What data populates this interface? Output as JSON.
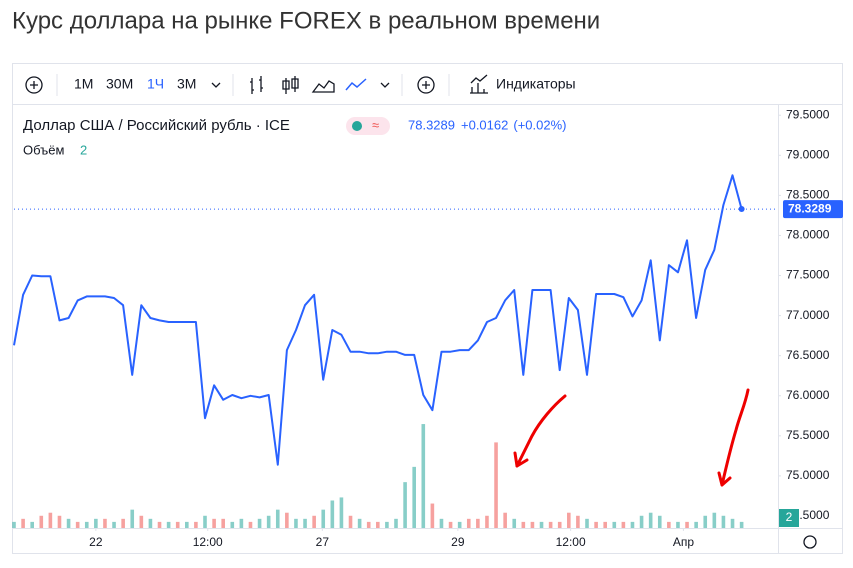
{
  "page_title": "Курс доллара на рынке FOREX в реальном времени",
  "toolbar": {
    "intervals": [
      "1M",
      "30M",
      "1Ч",
      "3M"
    ],
    "active_interval": 2,
    "indicators": "Индикаторы"
  },
  "chart_data": {
    "type": "line",
    "title": "Доллар США / Российский рубль · ICE",
    "last_price": 78.3289,
    "change": "+0.0162",
    "change_pct": "(+0.02%)",
    "volume_label": "Объём",
    "volume_last": 2,
    "x": [
      0,
      1,
      2,
      3,
      4,
      5,
      6,
      7,
      8,
      9,
      10,
      11,
      12,
      13,
      14,
      15,
      16,
      17,
      18,
      19,
      20,
      21,
      22,
      23,
      24,
      25,
      26,
      27,
      28,
      29,
      30,
      31,
      32,
      33,
      34,
      35,
      36,
      37,
      38,
      39,
      40,
      41,
      42,
      43,
      44,
      45,
      46,
      47,
      48,
      49,
      50,
      51,
      52,
      53,
      54,
      55,
      56,
      57,
      58,
      59,
      60,
      61,
      62,
      63,
      64,
      65,
      66,
      67,
      68,
      69,
      70,
      71,
      72,
      73,
      74,
      75,
      76,
      77,
      78,
      79,
      80
    ],
    "xlim": [
      0,
      84
    ],
    "xticks": [
      {
        "value": 9,
        "label": "22"
      },
      {
        "value": 21.3,
        "label": "12:00"
      },
      {
        "value": 33.9,
        "label": "27"
      },
      {
        "value": 48.8,
        "label": "29"
      },
      {
        "value": 61.2,
        "label": "12:00"
      },
      {
        "value": 73.6,
        "label": "Апр"
      }
    ],
    "ylim": [
      74.35,
      79.69
    ],
    "yticks": [
      {
        "value": 74.5,
        "label": "74.5000"
      },
      {
        "value": 75,
        "label": "75.0000"
      },
      {
        "value": 75.5,
        "label": "75.5000"
      },
      {
        "value": 76,
        "label": "76.0000"
      },
      {
        "value": 76.5,
        "label": "76.5000"
      },
      {
        "value": 77,
        "label": "77.0000"
      },
      {
        "value": 77.5,
        "label": "77.5000"
      },
      {
        "value": 78,
        "label": "78.0000"
      },
      {
        "value": 78.5,
        "label": "78.5000"
      },
      {
        "value": 79,
        "label": "79.0000"
      },
      {
        "value": 79.5,
        "label": "79.5000"
      }
    ],
    "y2lim": [
      0,
      140
    ],
    "grid": false,
    "series": [
      {
        "name": "USD/RUB",
        "color": "#2962ff",
        "values": [
          76.63,
          77.26,
          77.5,
          77.49,
          77.49,
          76.94,
          76.97,
          77.19,
          77.24,
          77.24,
          77.24,
          77.22,
          77.13,
          76.26,
          77.13,
          76.97,
          76.94,
          76.92,
          76.92,
          76.92,
          76.92,
          75.72,
          76.13,
          75.95,
          76.01,
          75.97,
          76.0,
          75.98,
          76.01,
          75.14,
          76.57,
          76.82,
          77.13,
          77.26,
          76.2,
          76.82,
          76.76,
          76.55,
          76.55,
          76.53,
          76.53,
          76.55,
          76.55,
          76.51,
          76.51,
          76.01,
          75.82,
          76.55,
          76.55,
          76.57,
          76.57,
          76.69,
          76.92,
          76.97,
          77.19,
          77.32,
          76.26,
          77.32,
          77.32,
          77.32,
          76.32,
          77.22,
          77.07,
          76.26,
          77.27,
          77.27,
          77.27,
          77.23,
          76.99,
          77.19,
          77.69,
          76.69,
          77.63,
          77.54,
          77.94,
          76.97,
          77.57,
          77.82,
          78.38,
          78.75,
          78.33
        ]
      },
      {
        "name": "Объём",
        "type": "bar",
        "axis": "y2",
        "values": [
          2,
          3,
          2,
          4,
          5,
          4,
          3,
          2,
          2,
          3,
          3,
          2,
          3,
          6,
          4,
          3,
          2,
          2,
          2,
          2,
          2,
          4,
          3,
          3,
          2,
          3,
          2,
          3,
          4,
          6,
          5,
          3,
          3,
          4,
          6,
          9,
          10,
          4,
          3,
          2,
          2,
          2,
          3,
          15,
          20,
          34,
          8,
          3,
          2,
          2,
          3,
          3,
          4,
          28,
          5,
          3,
          2,
          2,
          2,
          2,
          2,
          5,
          4,
          3,
          2,
          2,
          2,
          2,
          2,
          4,
          5,
          4,
          2,
          2,
          2,
          2,
          4,
          5,
          4,
          3,
          2
        ],
        "colors": [
          "#26a69a",
          "#ef5350",
          "#26a69a",
          "#ef5350",
          "#ef5350",
          "#ef5350",
          "#26a69a",
          "#ef5350",
          "#26a69a",
          "#26a69a",
          "#ef5350",
          "#26a69a",
          "#ef5350",
          "#26a69a",
          "#ef5350",
          "#26a69a",
          "#ef5350",
          "#26a69a",
          "#ef5350",
          "#26a69a",
          "#ef5350",
          "#26a69a",
          "#ef5350",
          "#ef5350",
          "#26a69a",
          "#26a69a",
          "#ef5350",
          "#26a69a",
          "#26a69a",
          "#26a69a",
          "#ef5350",
          "#26a69a",
          "#26a69a",
          "#ef5350",
          "#26a69a",
          "#26a69a",
          "#26a69a",
          "#ef5350",
          "#26a69a",
          "#ef5350",
          "#ef5350",
          "#26a69a",
          "#26a69a",
          "#26a69a",
          "#26a69a",
          "#26a69a",
          "#ef5350",
          "#26a69a",
          "#ef5350",
          "#26a69a",
          "#ef5350",
          "#ef5350",
          "#ef5350",
          "#ef5350",
          "#ef5350",
          "#26a69a",
          "#ef5350",
          "#ef5350",
          "#26a69a",
          "#ef5350",
          "#ef5350",
          "#ef5350",
          "#ef5350",
          "#26a69a",
          "#ef5350",
          "#ef5350",
          "#26a69a",
          "#ef5350",
          "#26a69a",
          "#26a69a",
          "#26a69a",
          "#26a69a",
          "#ef5350",
          "#26a69a",
          "#ef5350",
          "#26a69a",
          "#26a69a",
          "#26a69a",
          "#26a69a",
          "#26a69a",
          "#26a69a"
        ]
      }
    ]
  }
}
